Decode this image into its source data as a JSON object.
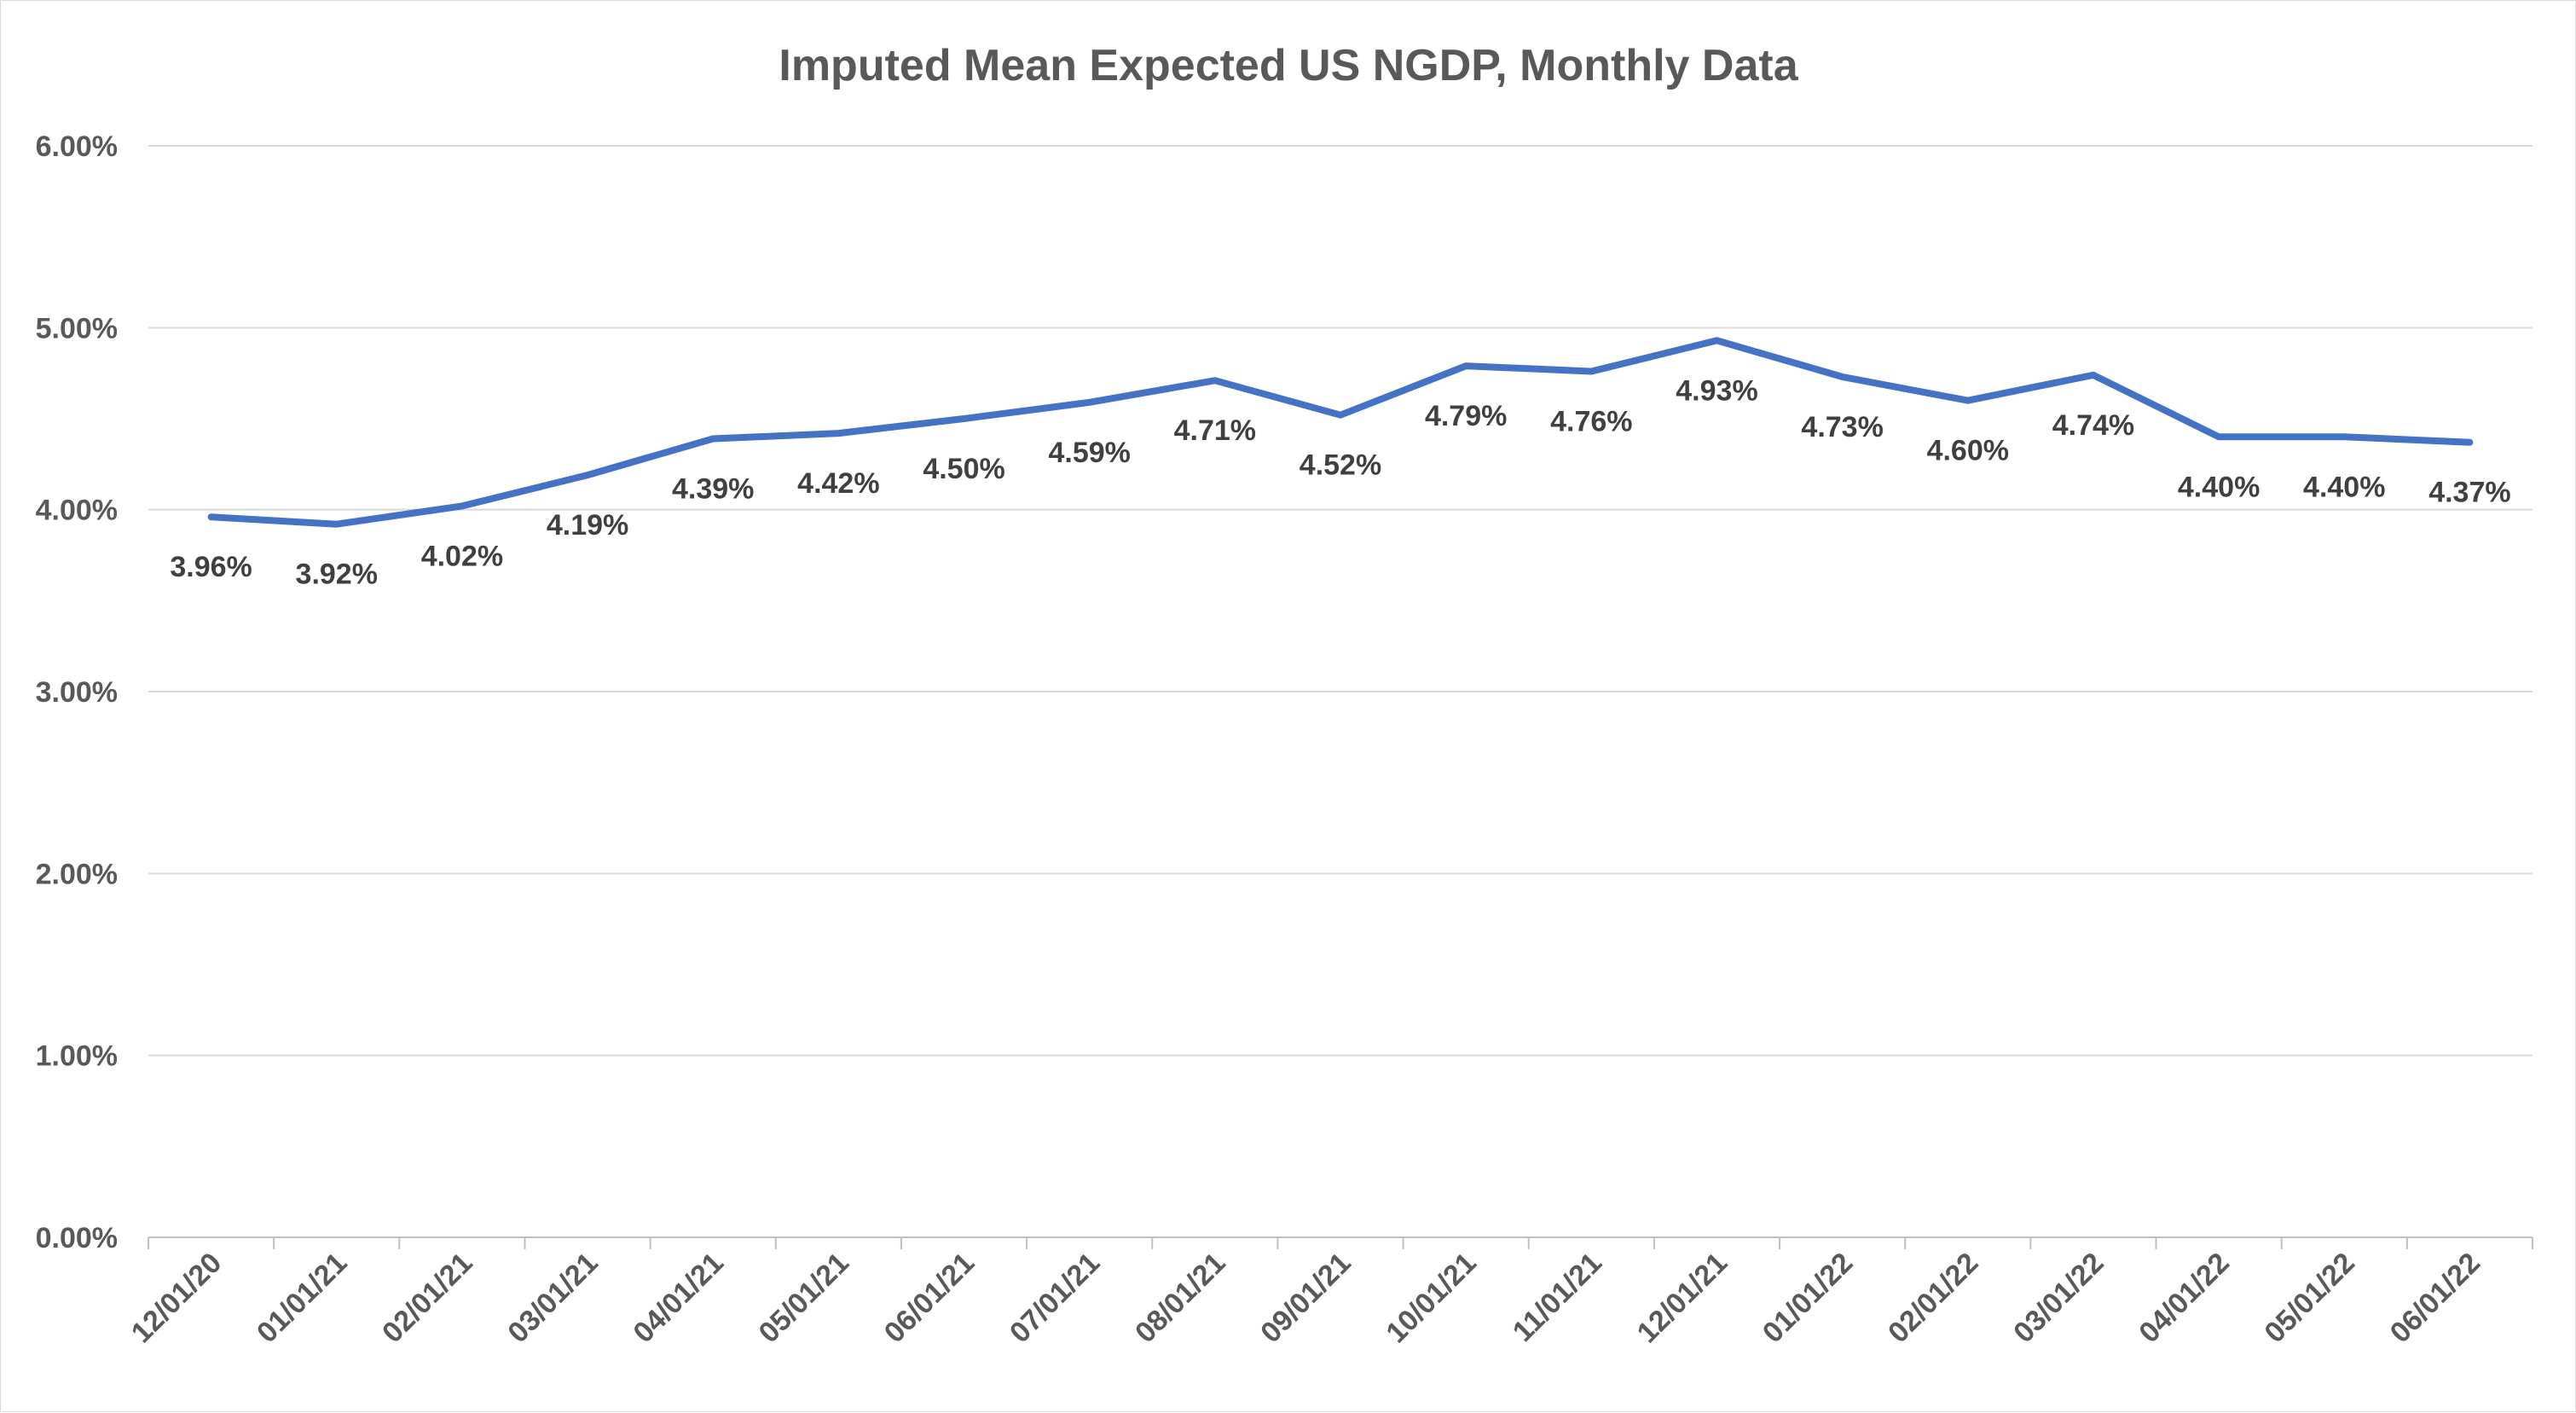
{
  "chart_data": {
    "type": "line",
    "title": "Imputed Mean Expected US NGDP, Monthly Data",
    "xlabel": "",
    "ylabel": "",
    "categories": [
      "12/01/20",
      "01/01/21",
      "02/01/21",
      "03/01/21",
      "04/01/21",
      "05/01/21",
      "06/01/21",
      "07/01/21",
      "08/01/21",
      "09/01/21",
      "10/01/21",
      "11/01/21",
      "12/01/21",
      "01/01/22",
      "02/01/22",
      "03/01/22",
      "04/01/22",
      "05/01/22",
      "06/01/22"
    ],
    "series": [
      {
        "values": [
          3.96,
          3.92,
          4.02,
          4.19,
          4.39,
          4.42,
          4.5,
          4.59,
          4.71,
          4.52,
          4.79,
          4.76,
          4.93,
          4.73,
          4.6,
          4.74,
          4.4,
          4.4,
          4.37
        ],
        "labels": [
          "3.96%",
          "3.92%",
          "4.02%",
          "4.19%",
          "4.39%",
          "4.42%",
          "4.50%",
          "4.59%",
          "4.71%",
          "4.52%",
          "4.79%",
          "4.76%",
          "4.93%",
          "4.73%",
          "4.60%",
          "4.74%",
          "4.40%",
          "4.40%",
          "4.37%"
        ],
        "color": "#4472c4"
      }
    ],
    "ylim": [
      0,
      6
    ],
    "yticks": [
      "0.00%",
      "1.00%",
      "2.00%",
      "3.00%",
      "4.00%",
      "5.00%",
      "6.00%"
    ],
    "grid": true,
    "legend": "none",
    "colors": {
      "line": "#4472c4",
      "grid": "#d9d9d9",
      "text": "#595959",
      "label": "#404040"
    }
  }
}
